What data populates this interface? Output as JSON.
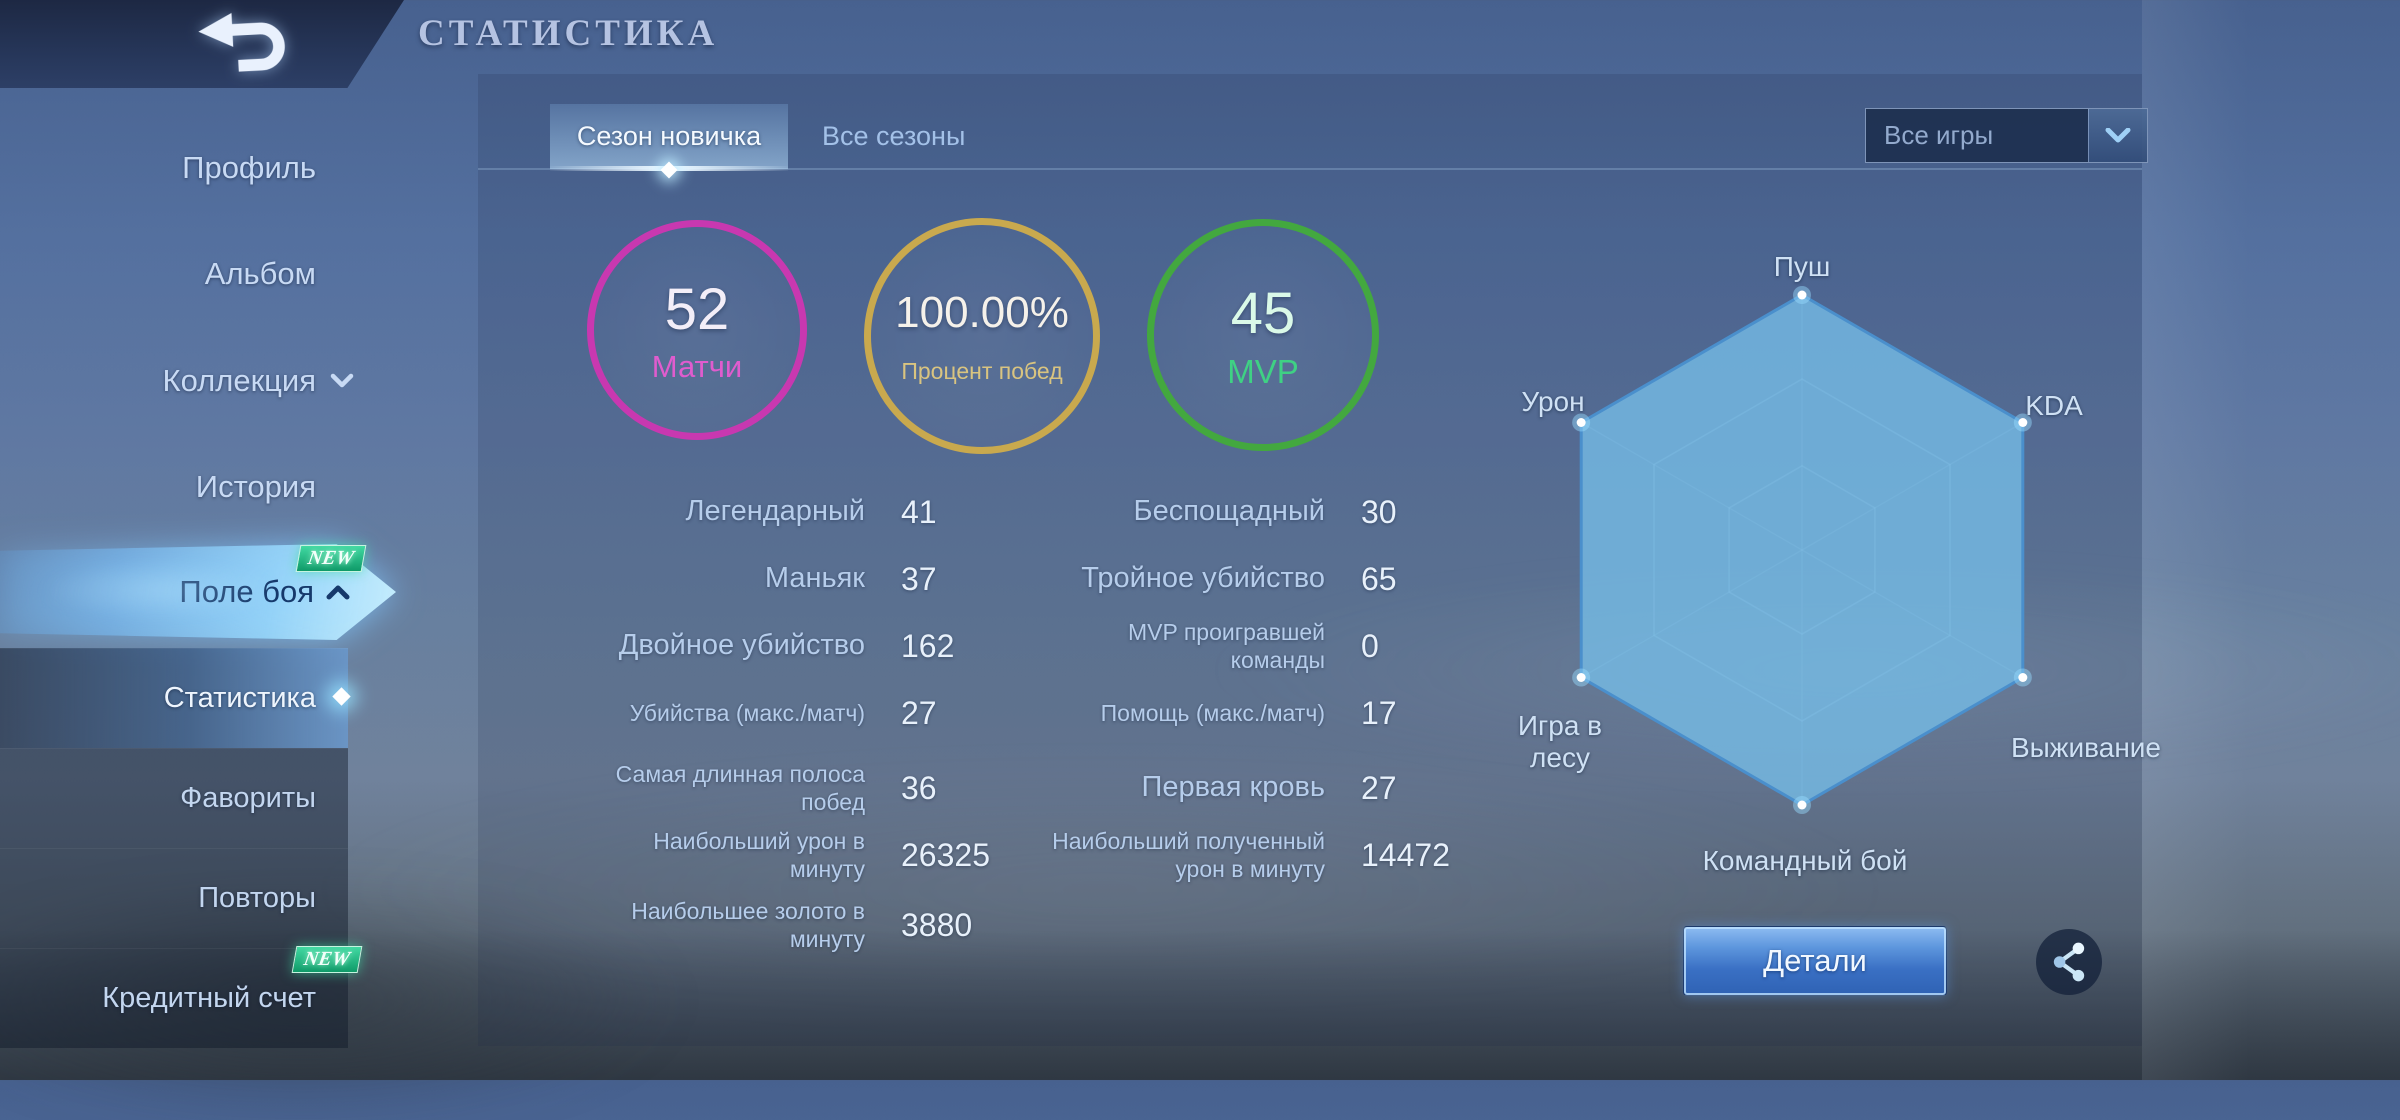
{
  "header": {
    "title": "СТАТИСТИКА"
  },
  "sidebar": {
    "items": [
      {
        "label": "Профиль"
      },
      {
        "label": "Альбом"
      },
      {
        "label": "Коллекция",
        "chevron": "down"
      },
      {
        "label": "История"
      },
      {
        "label": "Поле боя",
        "chevron": "up",
        "badge": "NEW"
      }
    ],
    "subitems": [
      {
        "label": "Статистика",
        "selected": true
      },
      {
        "label": "Фавориты"
      },
      {
        "label": "Повторы"
      },
      {
        "label": "Кредитный счет",
        "badge": "NEW"
      }
    ]
  },
  "tabs": {
    "active_label": "Сезон новичка",
    "inactive_label": "Все сезоны"
  },
  "filter": {
    "value": "Все игры"
  },
  "summary": [
    {
      "value": "52",
      "label": "Матчи",
      "ring_color": "#c838b0",
      "label_color": "#e05cce",
      "value_color": "#f3eef8"
    },
    {
      "value": "100.00%",
      "label": "Процент побед",
      "ring_color": "#c9a94e",
      "label_color": "#d9c480",
      "value_color": "#f5f1ea"
    },
    {
      "value": "45",
      "label": "MVP",
      "ring_color": "#43a83f",
      "label_color": "#3fd184",
      "value_color": "#daf9e8"
    }
  ],
  "stats_left": [
    {
      "label": "Легендарный",
      "value": "41"
    },
    {
      "label": "Маньяк",
      "value": "37"
    },
    {
      "label": "Двойное убийство",
      "value": "162"
    },
    {
      "label": "Убийства (макс./матч)",
      "value": "27"
    },
    {
      "label": "Самая длинная полоса\nпобед",
      "value": "36"
    },
    {
      "label": "Наибольший урон в\nминуту",
      "value": "26325"
    },
    {
      "label": "Наибольшее золото в\nминуту",
      "value": "3880"
    }
  ],
  "stats_right": [
    {
      "label": "Беспощадный",
      "value": "30"
    },
    {
      "label": "Тройное убийство",
      "value": "65"
    },
    {
      "label": "MVP проигравшей\nкоманды",
      "value": "0"
    },
    {
      "label": "Помощь (макс./матч)",
      "value": "17"
    },
    {
      "label": "Первая кровь",
      "value": "27"
    },
    {
      "label": "Наибольший полученный\nурон в минуту",
      "value": "14472"
    }
  ],
  "chart_data": {
    "type": "radar",
    "categories": [
      "Пуш",
      "KDA",
      "Выживание",
      "Командный бой",
      "Игра в лесу",
      "Урон"
    ],
    "values": [
      1,
      1,
      1,
      1,
      1,
      1
    ],
    "max": 1,
    "grid_levels": [
      0.33,
      0.67,
      1
    ],
    "grid": "hexagonal, spokes to all vertices",
    "legend_position": "none",
    "fill_color": "rgba(118,190,232,0.78)",
    "stroke_color": "#4a8fcc",
    "grid_color": "rgba(190,220,245,0.3)",
    "point_color": "#ffffff"
  },
  "actions": {
    "details_label": "Детали"
  },
  "icons": {
    "back": "back-return-arrow",
    "collection_chevron": "chevron-down",
    "battlefield_chevron": "chevron-up",
    "dropdown_chevron": "chevron-down",
    "share": "share-nodes"
  },
  "colors": {
    "banner_glow": "#8ed4ff",
    "selected_row_highlight": "#7db4ef",
    "details_button": "#3a70c4",
    "new_badge": "#15b27c"
  }
}
